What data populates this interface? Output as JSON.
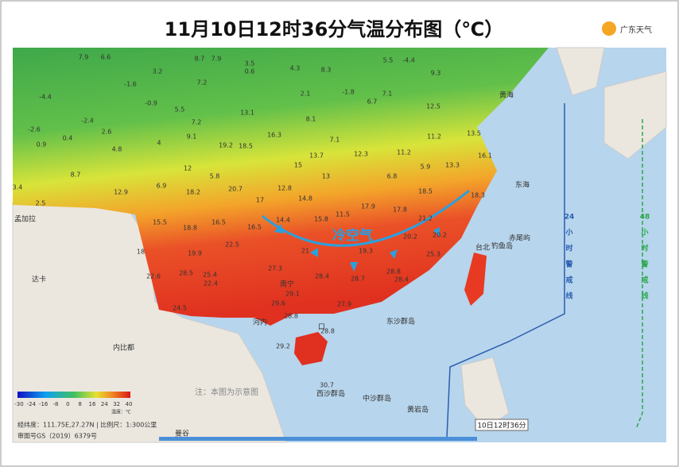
{
  "header": {
    "title": "11月10日12时36分气温分布图（℃）",
    "logo": "广东天气"
  },
  "annotation": {
    "cold_air": "冷空气",
    "note": "注：本图为示意图",
    "time_stamp": "10日12时36分"
  },
  "warning_lines": [
    {
      "hours": "24",
      "text": "小时警戒线"
    },
    {
      "hours": "48",
      "text": "小时警戒线"
    }
  ],
  "places": [
    "黄海",
    "东海",
    "台北",
    "赤尾屿",
    "钓鱼岛",
    "东沙群岛",
    "西沙群岛",
    "中沙群岛",
    "黄岩岛",
    "河内",
    "内比都",
    "曼谷",
    "达卡",
    "孟加拉",
    "南宁",
    "口"
  ],
  "legend": {
    "ticks": [
      "-30",
      "-24",
      "-16",
      "-8",
      "0",
      "8",
      "16",
      "24",
      "32",
      "40"
    ],
    "unit": "温度：℃"
  },
  "footer": {
    "coords": "经纬度：111.75E,27.27N | 比例尺：1:300公里",
    "approval": "审图号GS（2019）6379号"
  },
  "temperatures": [
    7.9,
    6.6,
    3.2,
    8.7,
    7.9,
    3.5,
    0.6,
    4.3,
    8.3,
    5.5,
    -4.4,
    9.3,
    -1.6,
    7.2,
    2.1,
    -1.8,
    7.1,
    -4.4,
    -0.9,
    5.5,
    13.1,
    6.7,
    12.5,
    -2.4,
    7.2,
    8.1,
    -2.6,
    0.4,
    2.6,
    16.3,
    11.2,
    13.5,
    0.9,
    4,
    9.1,
    7.1,
    4.8,
    19.2,
    18.5,
    12.3,
    11.2,
    16.1,
    13.7,
    5.9,
    13.3,
    12,
    5.8,
    8.7,
    6.8,
    3.4,
    6.9,
    15,
    13,
    12.8,
    18.2,
    20.7,
    18.5,
    18.3,
    12.9,
    2.5,
    17,
    14.8,
    17.9,
    17.8,
    11.5,
    21.2,
    15.5,
    16.5,
    14.4,
    15.8,
    18.8,
    16.5,
    20.2,
    20.2,
    18,
    19.9,
    22.5,
    21,
    19.3,
    25.3,
    27.3,
    28.5,
    25.4,
    22.6,
    22.4,
    28.4,
    28.7,
    28.8,
    28.4,
    29.1,
    24.5,
    29.6,
    27.9,
    28.8,
    28.8,
    29.2,
    30.7
  ]
}
